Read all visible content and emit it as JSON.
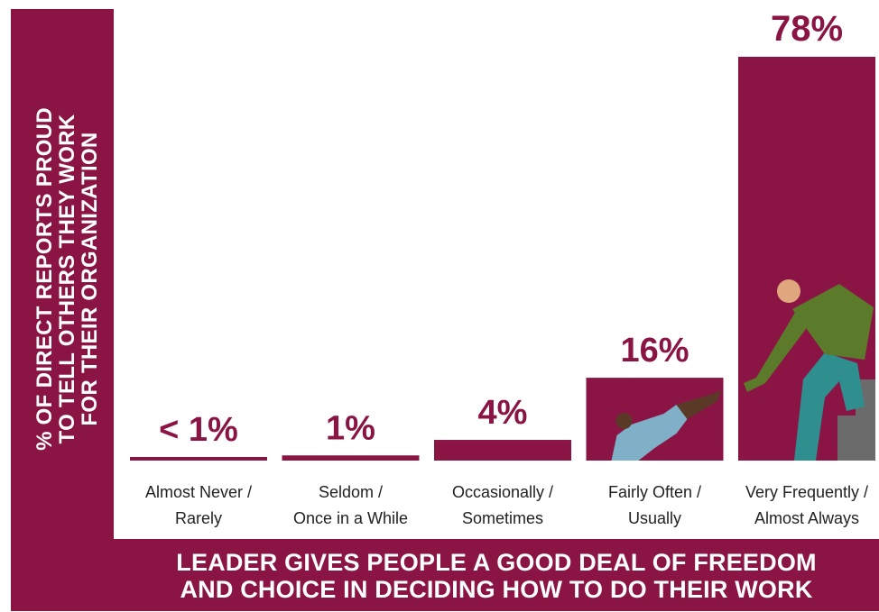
{
  "colors": {
    "brand": "#8a1545",
    "figure": "#5b7a2a"
  },
  "chart_data": {
    "type": "bar",
    "ylabel": [
      "% OF DIRECT REPORTS PROUD",
      "TO TELL OTHERS THEY WORK",
      "FOR THEIR ORGANIZATION"
    ],
    "xlabel": [
      "LEADER GIVES PEOPLE A GOOD DEAL OF FREEDOM",
      "AND CHOICE IN DECIDING HOW TO DO THEIR WORK"
    ],
    "categories": [
      [
        "Almost Never /",
        "Rarely"
      ],
      [
        "Seldom /",
        "Once in a While"
      ],
      [
        "Occasionally /",
        "Sometimes"
      ],
      [
        "Fairly Often /",
        "Usually"
      ],
      [
        "Very Frequently /",
        "Almost Always"
      ]
    ],
    "values": [
      0.5,
      1,
      4,
      16,
      78
    ],
    "value_labels": [
      "< 1%",
      "1%",
      "4%",
      "16%",
      "78%"
    ],
    "ylim": [
      0,
      78
    ],
    "grid": false
  }
}
